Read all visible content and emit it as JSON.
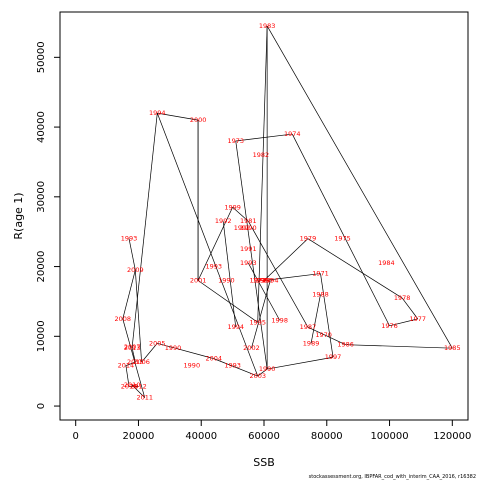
{
  "chart_data": {
    "type": "line",
    "xlabel": "SSB",
    "ylabel": "R(age 1)",
    "xlim": [
      -5000,
      125000
    ],
    "ylim": [
      -2000,
      56500
    ],
    "xticks": [
      0,
      20000,
      40000,
      60000,
      80000,
      100000,
      120000
    ],
    "yticks": [
      0,
      10000,
      20000,
      30000,
      40000,
      50000
    ],
    "grid": false,
    "legend": "none",
    "line_color": "#000000",
    "label_color": "#ff0000",
    "points": [
      {
        "label": "1970",
        "x": 79000,
        "y": 10200
      },
      {
        "label": "1971",
        "x": 78000,
        "y": 19000
      },
      {
        "label": "1972",
        "x": 58000,
        "y": 18000
      },
      {
        "label": "1973",
        "x": 51000,
        "y": 38000
      },
      {
        "label": "1974",
        "x": 69000,
        "y": 39000
      },
      {
        "label": "1975",
        "x": 85000,
        "y": 24000
      },
      {
        "label": "1976",
        "x": 100000,
        "y": 11500
      },
      {
        "label": "1977",
        "x": 109000,
        "y": 12500
      },
      {
        "label": "1978",
        "x": 104000,
        "y": 15500
      },
      {
        "label": "1979",
        "x": 74000,
        "y": 24000
      },
      {
        "label": "1980",
        "x": 60000,
        "y": 18000
      },
      {
        "label": "1981",
        "x": 55000,
        "y": 26500
      },
      {
        "label": "1982",
        "x": 59000,
        "y": 36000
      },
      {
        "label": "1983",
        "x": 61000,
        "y": 54500
      },
      {
        "label": "1984",
        "x": 99000,
        "y": 20500
      },
      {
        "label": "1985",
        "x": 120000,
        "y": 8300
      },
      {
        "label": "1986",
        "x": 86000,
        "y": 8800
      },
      {
        "label": "1987",
        "x": 74000,
        "y": 11300
      },
      {
        "label": "1988",
        "x": 78000,
        "y": 16000
      },
      {
        "label": "1989",
        "x": 75000,
        "y": 9000
      },
      {
        "label": "1990",
        "x": 61000,
        "y": 5300
      },
      {
        "label": "1991",
        "x": 55000,
        "y": 22500
      },
      {
        "label": "1992",
        "x": 53000,
        "y": 25500
      },
      {
        "label": "1993",
        "x": 55000,
        "y": 20500
      },
      {
        "label": "1994",
        "x": 26000,
        "y": 42000
      },
      {
        "label": "1995",
        "x": 58000,
        "y": 12000
      },
      {
        "label": "1996",
        "x": 59000,
        "y": 18000
      },
      {
        "label": "1997",
        "x": 82000,
        "y": 7000
      },
      {
        "label": "1998",
        "x": 65000,
        "y": 12300
      },
      {
        "label": "1999",
        "x": 50000,
        "y": 28500
      },
      {
        "label": "2000",
        "x": 39000,
        "y": 41000
      },
      {
        "label": "2001",
        "x": 39000,
        "y": 18000
      },
      {
        "label": "2002",
        "x": 56000,
        "y": 8300
      },
      {
        "label": "2003",
        "x": 58000,
        "y": 4300
      },
      {
        "label": "2004",
        "x": 44000,
        "y": 6800
      },
      {
        "label": "2005",
        "x": 26000,
        "y": 9000
      },
      {
        "label": "2006",
        "x": 21000,
        "y": 6300
      },
      {
        "label": "2007",
        "x": 18000,
        "y": 8500
      },
      {
        "label": "2008",
        "x": 15000,
        "y": 12500
      },
      {
        "label": "2009",
        "x": 19000,
        "y": 19500
      },
      {
        "label": "2010",
        "x": 18000,
        "y": 3000
      },
      {
        "label": "2011",
        "x": 22000,
        "y": 1200
      },
      {
        "label": "2012",
        "x": 20000,
        "y": 2800
      },
      {
        "label": "2013",
        "x": 18000,
        "y": 8300
      },
      {
        "label": "2014",
        "x": 16000,
        "y": 5800
      },
      {
        "label": "2015",
        "x": 19000,
        "y": 6300
      },
      {
        "label": "2016",
        "x": 17000,
        "y": 2800
      }
    ],
    "extra_labels": [
      {
        "label": "1993",
        "x": 17000,
        "y": 24000
      },
      {
        "label": "1993",
        "x": 44000,
        "y": 20000
      },
      {
        "label": "1990",
        "x": 48000,
        "y": 18000
      },
      {
        "label": "1994",
        "x": 51000,
        "y": 11300
      },
      {
        "label": "1990",
        "x": 31000,
        "y": 8300
      },
      {
        "label": "1990",
        "x": 37000,
        "y": 5800
      },
      {
        "label": "1993",
        "x": 50000,
        "y": 5800
      },
      {
        "label": "1992",
        "x": 47000,
        "y": 26500
      },
      {
        "label": "1990",
        "x": 55000,
        "y": 25500
      },
      {
        "label": "1994",
        "x": 62000,
        "y": 18000
      }
    ],
    "path": [
      "1994",
      "2000",
      "2001",
      "1995",
      "1983",
      "1990",
      "2003",
      "2004",
      "2005",
      "2006",
      "2009",
      "2008",
      "2011",
      "2010",
      "2012",
      "2016",
      "2014",
      "2015",
      "2013",
      "2007",
      "1994"
    ],
    "extra_segments": [
      [
        [
          51000,
          38000
        ],
        [
          69000,
          39000
        ]
      ],
      [
        [
          69000,
          39000
        ],
        [
          100000,
          11500
        ]
      ],
      [
        [
          100000,
          11500
        ],
        [
          109000,
          12500
        ]
      ],
      [
        [
          109000,
          12500
        ],
        [
          104000,
          15500
        ]
      ],
      [
        [
          104000,
          15500
        ],
        [
          74000,
          24000
        ]
      ],
      [
        [
          74000,
          24000
        ],
        [
          60000,
          18000
        ]
      ],
      [
        [
          60000,
          18000
        ],
        [
          78000,
          19000
        ]
      ],
      [
        [
          78000,
          19000
        ],
        [
          82000,
          7000
        ]
      ],
      [
        [
          82000,
          7000
        ],
        [
          61000,
          5300
        ]
      ],
      [
        [
          61000,
          5300
        ],
        [
          51000,
          38000
        ]
      ],
      [
        [
          61000,
          54500
        ],
        [
          120000,
          8300
        ]
      ],
      [
        [
          120000,
          8300
        ],
        [
          86000,
          8800
        ]
      ],
      [
        [
          86000,
          8800
        ],
        [
          74000,
          11300
        ]
      ],
      [
        [
          74000,
          11300
        ],
        [
          55000,
          26500
        ]
      ],
      [
        [
          55000,
          26500
        ],
        [
          50000,
          28500
        ]
      ],
      [
        [
          50000,
          28500
        ],
        [
          39000,
          18000
        ]
      ],
      [
        [
          47000,
          26500
        ],
        [
          51000,
          11300
        ]
      ],
      [
        [
          26000,
          42000
        ],
        [
          58000,
          4300
        ]
      ],
      [
        [
          56000,
          8300
        ],
        [
          62000,
          18000
        ]
      ],
      [
        [
          65000,
          12300
        ],
        [
          55000,
          20500
        ]
      ],
      [
        [
          75000,
          9000
        ],
        [
          78000,
          16000
        ]
      ],
      [
        [
          17000,
          24000
        ],
        [
          19000,
          19500
        ]
      ],
      [
        [
          39000,
          41000
        ],
        [
          39000,
          18000
        ]
      ]
    ]
  },
  "footer": {
    "note": "stockassessment.org, IBPFAR_cod_with_interim_CAA_2016, r16382"
  }
}
